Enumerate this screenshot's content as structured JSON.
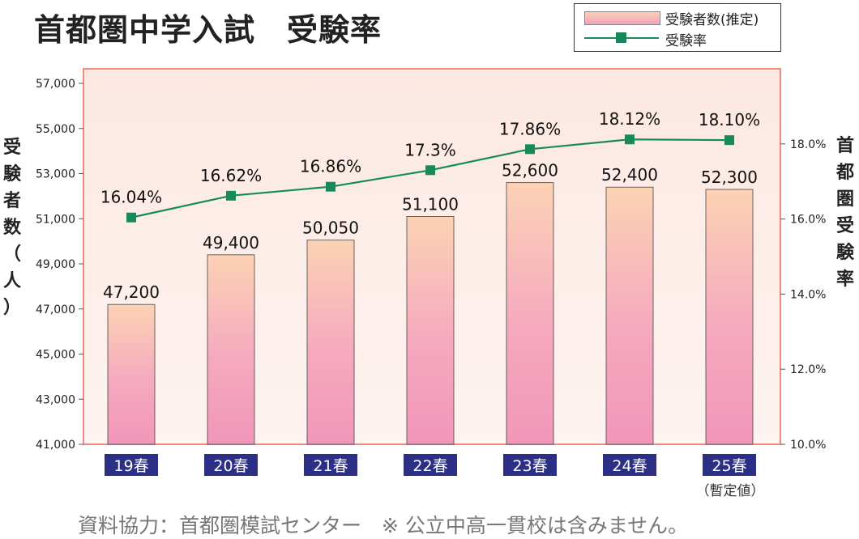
{
  "title": "首都圏中学入試　受験率",
  "legend": {
    "bar_label": "受験者数(推定)",
    "line_label": "受験率"
  },
  "left_axis_title": "受験者数（人）",
  "right_axis_title": "首都圏受験率",
  "note": "（暫定値）",
  "footnote": "資料協力：首都圏模試センター　※ 公立中高一貫校は含みません。",
  "colors": {
    "bar_top": "#fcd2b4",
    "bar_bottom": "#f296b8",
    "line": "#178a5c",
    "plot_bg_top": "#fde9e4",
    "plot_border": "#f08a80",
    "category_bg": "#2b2f86"
  },
  "chart_data": {
    "type": "bar",
    "categories": [
      "19春",
      "20春",
      "21春",
      "22春",
      "23春",
      "24春",
      "25春"
    ],
    "series": [
      {
        "name": "受験者数(推定)",
        "type": "bar",
        "axis": "left",
        "values": [
          47200,
          49400,
          50050,
          51100,
          52600,
          52400,
          52300
        ],
        "labels": [
          "47,200",
          "49,400",
          "50,050",
          "51,100",
          "52,600",
          "52,400",
          "52,300"
        ]
      },
      {
        "name": "受験率",
        "type": "line",
        "axis": "right",
        "values": [
          16.04,
          16.62,
          16.86,
          17.3,
          17.86,
          18.12,
          18.1
        ],
        "labels": [
          "16.04%",
          "16.62%",
          "16.86%",
          "17.3%",
          "17.86%",
          "18.12%",
          "18.10%"
        ]
      }
    ],
    "left_axis": {
      "ylim": [
        41000,
        57000
      ],
      "ticks": [
        41000,
        43000,
        45000,
        47000,
        49000,
        51000,
        53000,
        55000,
        57000
      ],
      "tick_labels": [
        "41,000",
        "43,000",
        "45,000",
        "47,000",
        "49,000",
        "51,000",
        "53,000",
        "55,000",
        "57,000"
      ]
    },
    "right_axis": {
      "ylim": [
        10,
        20
      ],
      "ticks": [
        10,
        12,
        14,
        16,
        18
      ],
      "tick_labels": [
        "10.0%",
        "12.0%",
        "14.0%",
        "16.0%",
        "18.0%"
      ]
    },
    "grid": false,
    "legend_position": "top-right"
  }
}
